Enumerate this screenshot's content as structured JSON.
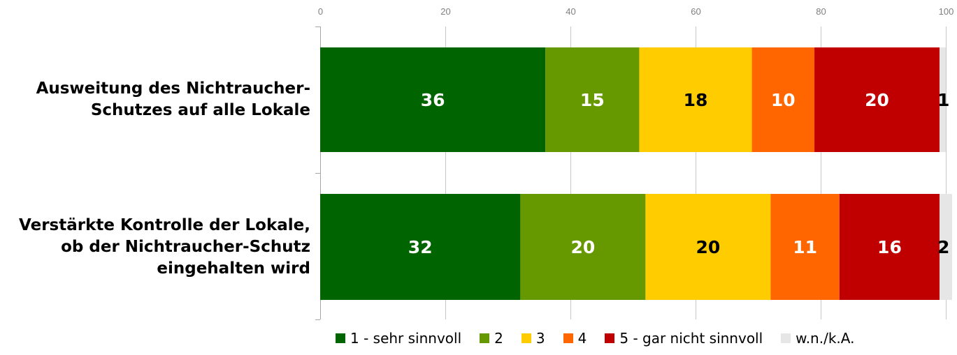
{
  "chart_data": {
    "type": "bar",
    "orientation": "horizontal",
    "stacked": true,
    "categories": [
      [
        "Ausweitung des Nichtraucher-",
        "Schutzes auf alle Lokale"
      ],
      [
        "Verstärkte Kontrolle der Lokale,",
        "ob der Nichtraucher-Schutz",
        "eingehalten wird"
      ]
    ],
    "series": [
      {
        "name": "1 - sehr sinnvoll",
        "color": "#006400",
        "label_color": "#ffffff",
        "values": [
          36,
          32
        ]
      },
      {
        "name": "2",
        "color": "#669900",
        "label_color": "#ffffff",
        "values": [
          15,
          20
        ]
      },
      {
        "name": "3",
        "color": "#ffcc00",
        "label_color": "#000000",
        "values": [
          18,
          20
        ]
      },
      {
        "name": "4",
        "color": "#ff6600",
        "label_color": "#ffffff",
        "values": [
          10,
          11
        ]
      },
      {
        "name": "5 - gar nicht sinnvoll",
        "color": "#c00000",
        "label_color": "#ffffff",
        "values": [
          20,
          16
        ]
      },
      {
        "name": "w.n./k.A.",
        "color": "#e6e6e6",
        "label_color": "#000000",
        "values": [
          1,
          2
        ]
      }
    ],
    "xlim": [
      0,
      100
    ],
    "xticks": [
      0,
      20,
      40,
      60,
      80,
      100
    ],
    "grid": true,
    "legend_position": "bottom"
  }
}
